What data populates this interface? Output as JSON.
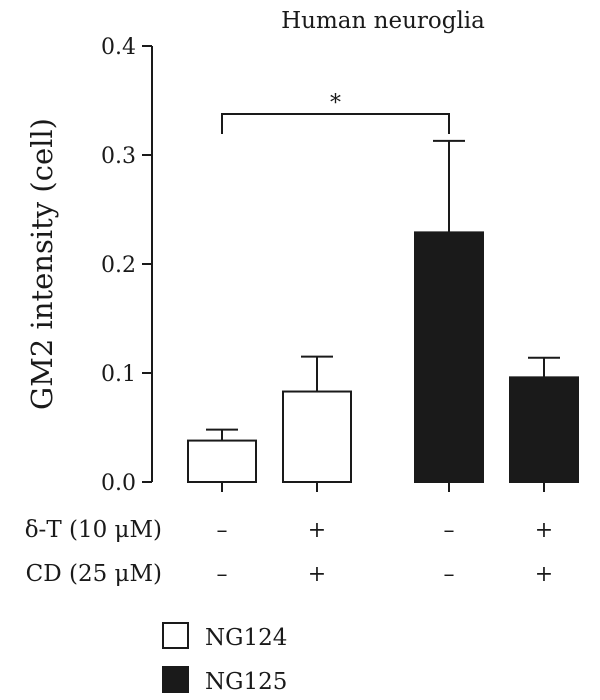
{
  "chart_data": {
    "type": "bar",
    "title": "Human neuroglia",
    "ylabel": "GM2 intensity (cell)",
    "xlabel": "",
    "ylim": [
      0,
      0.4
    ],
    "yticks": [
      "0.0",
      "0.1",
      "0.2",
      "0.3",
      "0.4"
    ],
    "grid": false,
    "legend_position": "bottom",
    "bars": [
      {
        "series": "NG124",
        "delta_t": "–",
        "cd": "–",
        "value": 0.038,
        "error": 0.01
      },
      {
        "series": "NG124",
        "delta_t": "+",
        "cd": "+",
        "value": 0.083,
        "error": 0.032
      },
      {
        "series": "NG125",
        "delta_t": "–",
        "cd": "–",
        "value": 0.229,
        "error": 0.084
      },
      {
        "series": "NG125",
        "delta_t": "+",
        "cd": "+",
        "value": 0.096,
        "error": 0.018
      }
    ],
    "series": [
      {
        "name": "NG124",
        "color": "#ffffff"
      },
      {
        "name": "NG125",
        "color": "#1a1a1a"
      }
    ],
    "significance": {
      "from_bar": 0,
      "to_bar": 2,
      "label": "*"
    },
    "conditions": [
      {
        "label": "δ-T (10 μM)"
      },
      {
        "label": "CD (25 μM)"
      }
    ]
  }
}
